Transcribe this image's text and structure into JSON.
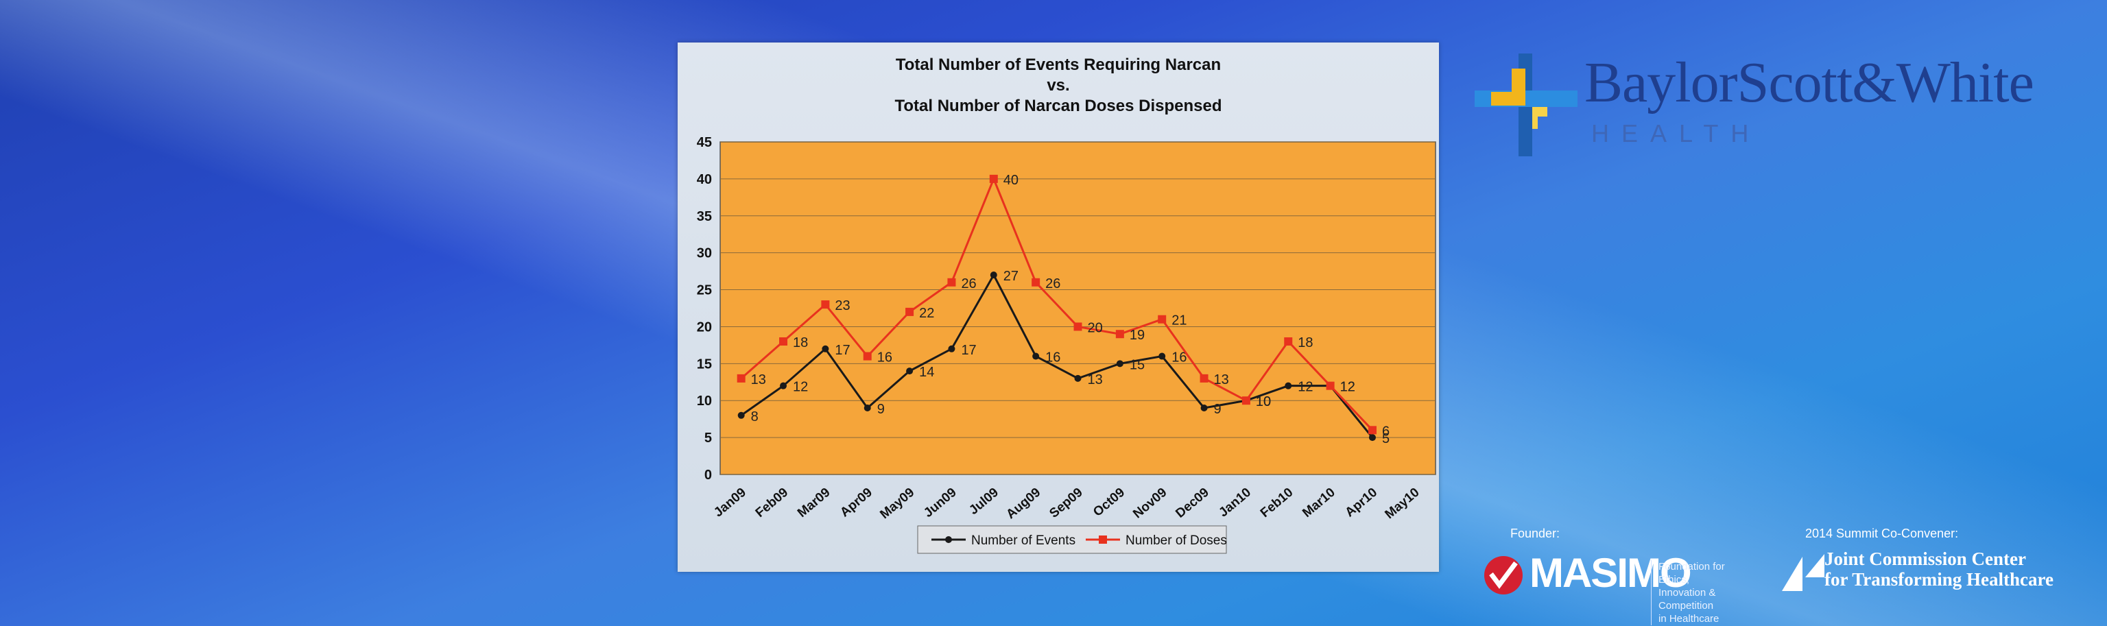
{
  "chart_data": {
    "type": "line",
    "title": [
      "Total Number of Events Requiring Narcan",
      "vs.",
      "Total Number of Narcan Doses Dispensed"
    ],
    "categories": [
      "Jan09",
      "Feb09",
      "Mar09",
      "Apr09",
      "May09",
      "Jun09",
      "Jul09",
      "Aug09",
      "Sep09",
      "Oct09",
      "Nov09",
      "Dec09",
      "Jan10",
      "Feb10",
      "Mar10",
      "Apr10",
      "May10"
    ],
    "ylim": [
      0,
      45
    ],
    "yticks": [
      0,
      5,
      10,
      15,
      20,
      25,
      30,
      35,
      40,
      45
    ],
    "grid": true,
    "legend_position": "bottom",
    "series": [
      {
        "name": "Number of Events",
        "color": "#1a1a1a",
        "values": [
          8,
          12,
          17,
          9,
          14,
          17,
          27,
          16,
          13,
          15,
          16,
          9,
          10,
          12,
          12,
          5,
          null
        ],
        "labels": [
          "8",
          "12",
          "17",
          "9",
          "14",
          "17",
          "27",
          "16",
          "13",
          "15",
          "16",
          "9",
          "10",
          "12",
          "12",
          "5",
          ""
        ]
      },
      {
        "name": "Number of Doses",
        "color": "#e8321e",
        "values": [
          13,
          18,
          23,
          16,
          22,
          26,
          40,
          26,
          20,
          19,
          21,
          13,
          10,
          18,
          12,
          6,
          null
        ],
        "labels": [
          "13",
          "18",
          "23",
          "16",
          "22",
          "26",
          "40",
          "26",
          "20",
          "19",
          "21",
          "13",
          "10",
          "18",
          "12",
          "6",
          ""
        ]
      }
    ]
  },
  "branding": {
    "bsw_name": "BaylorScott&White",
    "bsw_health": "HEALTH",
    "founder_label": "Founder:",
    "masimo_word": "MASIMO",
    "masimo_tagline": [
      "Foundation for Ethics,",
      "Innovation & Competition",
      "in Healthcare"
    ],
    "convener_label": "2014 Summit Co-Convener:",
    "jc_text": [
      "Joint Commission Center",
      "for Transforming Healthcare"
    ]
  },
  "colors": {
    "plot_bg": "#f5a53a",
    "events_line": "#1a1a1a",
    "doses_line": "#e8321e",
    "bsw_blue": "#1f3f8f",
    "bsw_gold": "#f2b51c"
  }
}
